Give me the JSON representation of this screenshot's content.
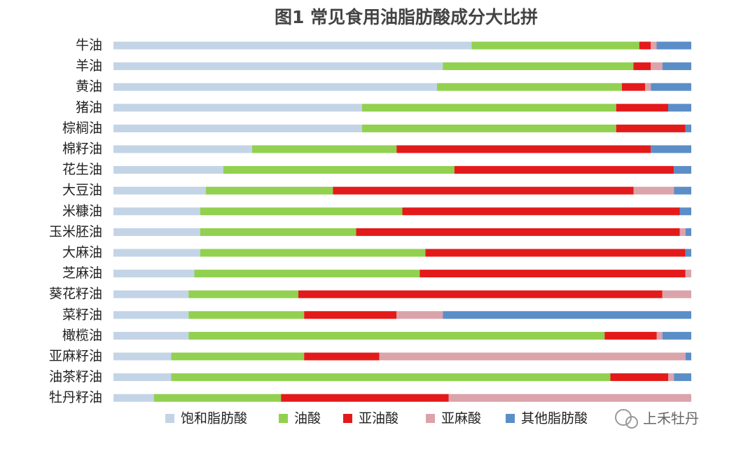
{
  "chart_data": {
    "type": "bar",
    "stacked": true,
    "title": "图1 常见食用油脂肪酸成分大比拼",
    "categories": [
      "牛油",
      "羊油",
      "黄油",
      "猪油",
      "棕榈油",
      "棉籽油",
      "花生油",
      "大豆油",
      "米糠油",
      "玉米胚油",
      "大麻油",
      "芝麻油",
      "葵花籽油",
      "菜籽油",
      "橄榄油",
      "亚麻籽油",
      "油茶籽油",
      "牡丹籽油"
    ],
    "xlim": [
      0,
      100
    ],
    "series": [
      {
        "name": "饱和脂肪酸",
        "color": "#c3d4e6",
        "values": [
          62,
          57,
          56,
          43,
          43,
          24,
          19,
          16,
          15,
          15,
          15,
          14,
          13,
          13,
          13,
          10,
          10,
          7
        ]
      },
      {
        "name": "油酸",
        "color": "#92d050",
        "values": [
          29,
          33,
          32,
          44,
          44,
          25,
          40,
          22,
          35,
          27,
          39,
          39,
          19,
          20,
          72,
          23,
          76,
          22
        ]
      },
      {
        "name": "亚油酸",
        "color": "#e41a1a",
        "values": [
          2,
          3,
          4,
          9,
          12,
          44,
          38,
          52,
          48,
          56,
          45,
          46,
          63,
          16,
          9,
          13,
          10,
          29
        ]
      },
      {
        "name": "亚麻酸",
        "color": "#dba3aa",
        "values": [
          1,
          2,
          1,
          0,
          0,
          0,
          0,
          7,
          0,
          1,
          0,
          1,
          5,
          8,
          1,
          53,
          1,
          42
        ]
      },
      {
        "name": "其他脂肪酸",
        "color": "#5b8ec7",
        "values": [
          6,
          5,
          7,
          4,
          1,
          7,
          3,
          3,
          2,
          1,
          1,
          0,
          0,
          43,
          5,
          1,
          3,
          0
        ]
      }
    ]
  },
  "watermark": "上禾牡丹"
}
